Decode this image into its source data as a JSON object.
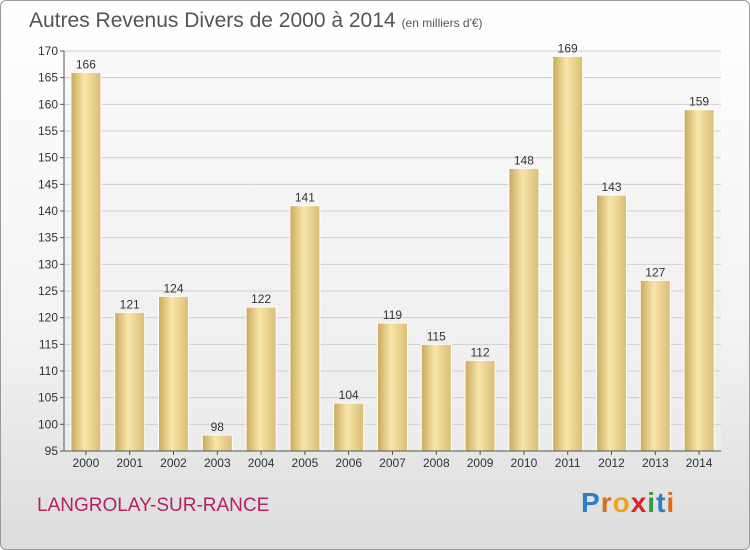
{
  "title": "Autres Revenus Divers de 2000 à 2014",
  "title_unit": "(en milliers d'€)",
  "place": "LANGROLAY-SUR-RANCE",
  "logo": "Proxiti",
  "colors": {
    "bar_light": "#f6e4a8",
    "bar_dark": "#c8ab5e",
    "place": "#b5225e",
    "grid": "#cfcfcf"
  },
  "chart_data": {
    "type": "bar",
    "categories": [
      "2000",
      "2001",
      "2002",
      "2003",
      "2004",
      "2005",
      "2006",
      "2007",
      "2008",
      "2009",
      "2010",
      "2011",
      "2012",
      "2013",
      "2014"
    ],
    "values": [
      166,
      121,
      124,
      98,
      122,
      141,
      104,
      119,
      115,
      112,
      148,
      169,
      143,
      127,
      159
    ],
    "ylim": [
      95,
      170
    ],
    "yticks": [
      95,
      100,
      105,
      110,
      115,
      120,
      125,
      130,
      135,
      140,
      145,
      150,
      155,
      160,
      165,
      170
    ],
    "grid": true,
    "data_labels": true
  }
}
